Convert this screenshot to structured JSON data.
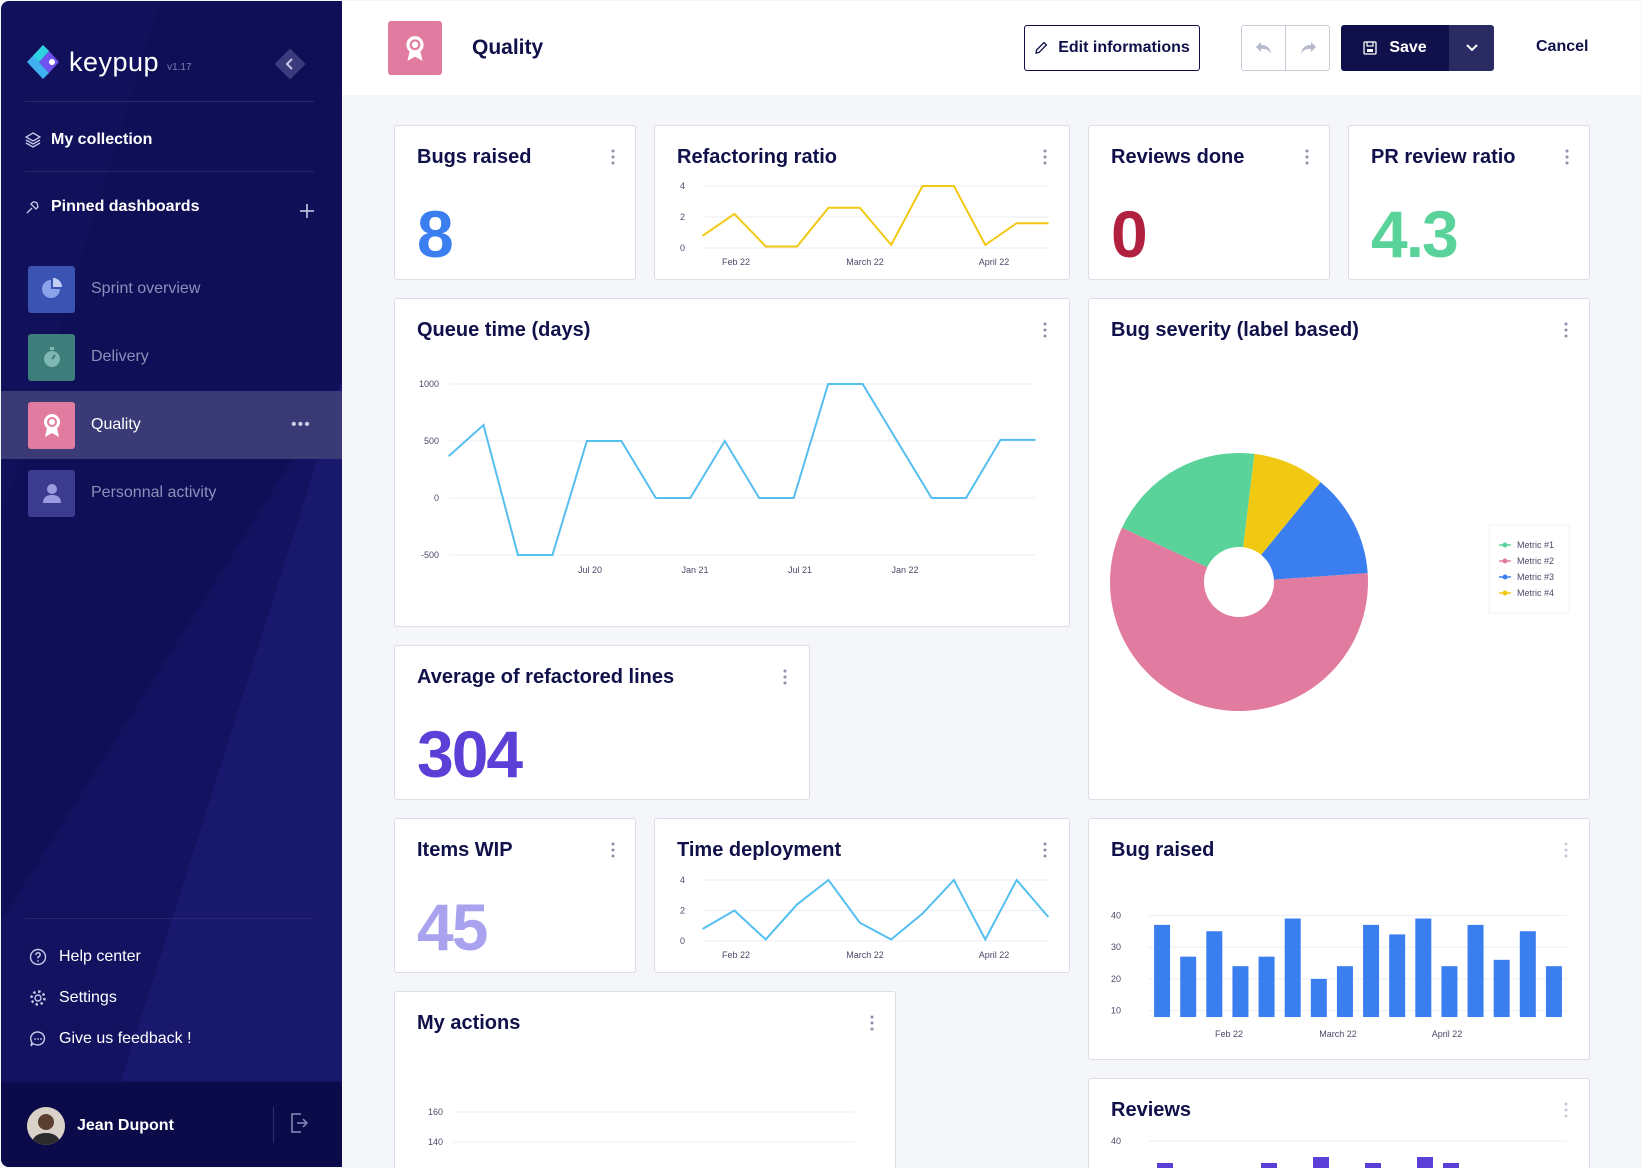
{
  "sidebar": {
    "brand": "keypup",
    "version": "v1.17",
    "my_collection": "My collection",
    "pinned_label": "Pinned dashboards",
    "items": [
      {
        "label": "Sprint overview",
        "color": "#3b53b2"
      },
      {
        "label": "Delivery",
        "color": "#3d7d7a"
      },
      {
        "label": "Quality",
        "color": "#e27ba0"
      },
      {
        "label": "Personnal activity",
        "color": "#3b3b8f"
      }
    ],
    "footer": {
      "help": "Help center",
      "settings": "Settings",
      "feedback": "Give us feedback !"
    },
    "user_name": "Jean Dupont"
  },
  "header": {
    "title": "Quality",
    "edit_label": "Edit informations",
    "save_label": "Save",
    "cancel_label": "Cancel"
  },
  "widgets": {
    "bugs_raised": {
      "title": "Bugs raised",
      "value": "8",
      "color": "#3b7ef0"
    },
    "refactoring": {
      "title": "Refactoring ratio"
    },
    "reviews_done": {
      "title": "Reviews done",
      "value": "0",
      "color": "#b2203f"
    },
    "pr_review": {
      "title": "PR review ratio",
      "value": "4.3",
      "color": "#5ad39a"
    },
    "queue_time": {
      "title": "Queue time (days)"
    },
    "bug_severity": {
      "title": "Bug severity (label based)"
    },
    "avg_refactored": {
      "title": "Average of refactored lines",
      "value": "304",
      "color": "#5b3fd6"
    },
    "items_wip": {
      "title": "Items WIP",
      "value": "45",
      "color": "#a9a3ef"
    },
    "time_deploy": {
      "title": "Time deployment"
    },
    "bug_raised_bar": {
      "title": "Bug raised"
    },
    "my_actions": {
      "title": "My actions"
    },
    "reviews": {
      "title": "Reviews"
    }
  },
  "chart_data": [
    {
      "id": "refactoring",
      "type": "line",
      "x_ticks": [
        "Feb 22",
        "March 22",
        "April 22"
      ],
      "y_ticks": [
        0,
        2,
        4
      ],
      "ylim": [
        0,
        4
      ],
      "values": [
        0.8,
        2.2,
        0.1,
        0.1,
        2.6,
        2.6,
        0.2,
        4.0,
        4.0,
        0.2,
        1.6,
        1.6
      ],
      "color": "#f2c912"
    },
    {
      "id": "queue_time",
      "type": "line",
      "x_ticks": [
        "Jul 20",
        "Jan 21",
        "Jul 21",
        "Jan 22"
      ],
      "y_ticks": [
        1000,
        500,
        0,
        -500
      ],
      "ylim": [
        -500,
        1000
      ],
      "values": [
        370,
        640,
        -500,
        -500,
        500,
        500,
        0,
        0,
        500,
        0,
        0,
        1000,
        1000,
        500,
        0,
        0,
        510,
        510
      ],
      "color": "#55bff0"
    },
    {
      "id": "time_deploy",
      "type": "line",
      "x_ticks": [
        "Feb 22",
        "March 22",
        "April 22"
      ],
      "y_ticks": [
        0,
        2,
        4
      ],
      "ylim": [
        0,
        4
      ],
      "values": [
        0.8,
        2.0,
        0.1,
        2.4,
        4.0,
        1.2,
        0.1,
        1.8,
        4.0,
        0.1,
        4.0,
        1.6
      ],
      "color": "#55bff0"
    },
    {
      "id": "bug_severity",
      "type": "pie",
      "series": [
        {
          "name": "Metric #1",
          "value": 20,
          "color": "#5ad39a"
        },
        {
          "name": "Metric #2",
          "value": 58,
          "color": "#e27ba0"
        },
        {
          "name": "Metric #3",
          "value": 13,
          "color": "#3b7ef0"
        },
        {
          "name": "Metric #4",
          "value": 9,
          "color": "#f2c912"
        }
      ]
    },
    {
      "id": "bug_raised_bar",
      "type": "bar",
      "x_ticks": [
        "Feb 22",
        "March 22",
        "April 22"
      ],
      "y_ticks": [
        40,
        30,
        20,
        10
      ],
      "ylim": [
        8,
        42
      ],
      "values": [
        37,
        27,
        35,
        24,
        27,
        39,
        20,
        24,
        37,
        34,
        39,
        24,
        37,
        26,
        35,
        24
      ],
      "color": "#3b7ef0"
    },
    {
      "id": "my_actions",
      "type": "line",
      "y_ticks": [
        160,
        140
      ],
      "values": []
    },
    {
      "id": "reviews",
      "type": "bar",
      "y_ticks": [
        40
      ],
      "values": [],
      "color": "#5b3fd6"
    }
  ]
}
